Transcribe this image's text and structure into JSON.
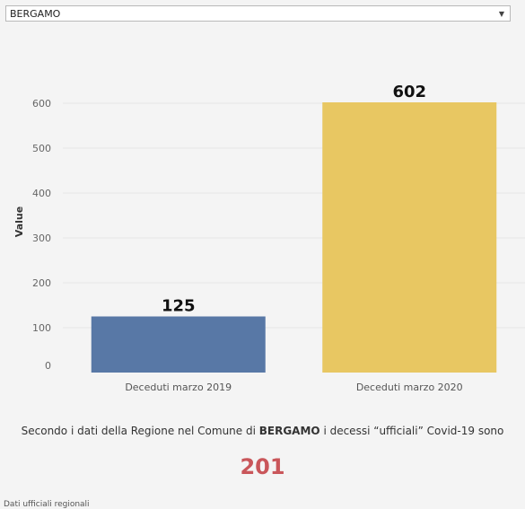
{
  "filter": {
    "selected": "BERGAMO",
    "arrow_icon": "dropdown-arrow-icon"
  },
  "chart_data": {
    "type": "bar",
    "categories": [
      "Deceduti marzo 2019",
      "Deceduti marzo 2020"
    ],
    "values": [
      125,
      602
    ],
    "data_labels": [
      "125",
      "602"
    ],
    "ylabel": "Value",
    "yticks": [
      0,
      100,
      200,
      300,
      400,
      500,
      600
    ],
    "ylim": [
      0,
      620
    ],
    "colors": [
      "#5878a6",
      "#e8c762"
    ],
    "grid": true,
    "legend": "none"
  },
  "summary": {
    "prefix": "Secondo i dati della Regione nel Comune di ",
    "city": "BERGAMO",
    "suffix": " i decessi “ufficiali” Covid-19 sono",
    "count": "201"
  },
  "footer": {
    "text": "Dati ufficiali regionali"
  }
}
